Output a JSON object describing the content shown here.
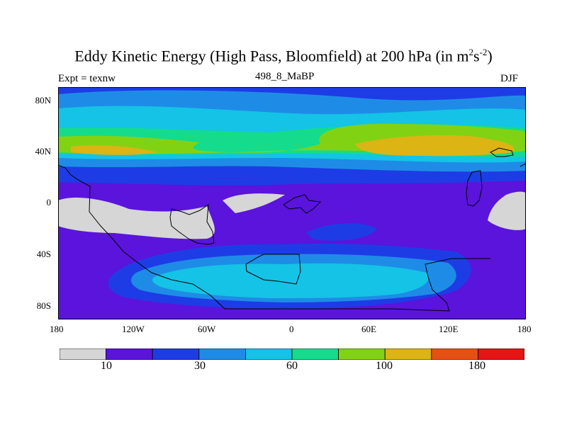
{
  "title": {
    "main": "Eddy Kinetic Energy (High Pass, Bloomfield) at 200 hPa (in m",
    "sup1": "2",
    "mid": "s",
    "sup2": "-2",
    "close": ")"
  },
  "left_label": "Expt = texnw",
  "center_label": "498_8_MaBP",
  "right_label": "DJF",
  "x_ticks": [
    "180",
    "120W",
    "60W",
    "0",
    "60E",
    "120E",
    "180"
  ],
  "y_ticks": [
    "80N",
    "40N",
    "0",
    "40S",
    "80S"
  ],
  "colorbar": {
    "colors": [
      "#d6d6d6",
      "#5a14dc",
      "#1e3ce6",
      "#1e8ce6",
      "#14c3e6",
      "#14dc8c",
      "#82d214",
      "#dcb414",
      "#e65014",
      "#e61414"
    ],
    "labels": [
      "10",
      "30",
      "60",
      "100",
      "180"
    ]
  },
  "colors": {
    "grey": "#d6d6d6",
    "violet": "#5a14dc",
    "blue": "#1e3ce6",
    "midblue": "#1e8ce6",
    "cyan": "#14c3e6",
    "teal": "#14dc8c",
    "green": "#82d214",
    "amber": "#dcb414"
  }
}
